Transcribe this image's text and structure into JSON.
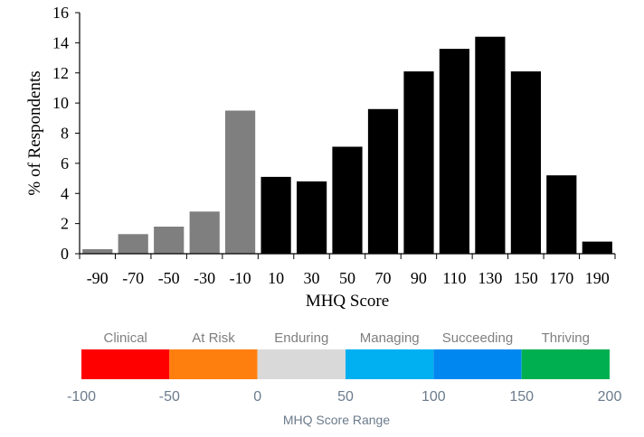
{
  "chart_data": [
    {
      "type": "bar",
      "title": "",
      "xlabel": "MHQ Score",
      "ylabel": "% of Respondents",
      "ylim": [
        0,
        16
      ],
      "yticks": [
        0,
        2,
        4,
        6,
        8,
        10,
        12,
        14,
        16
      ],
      "categories": [
        "-90",
        "-70",
        "-50",
        "-30",
        "-10",
        "10",
        "30",
        "50",
        "70",
        "90",
        "110",
        "130",
        "150",
        "170",
        "190"
      ],
      "values": [
        0.3,
        1.3,
        1.8,
        2.8,
        9.5,
        5.1,
        4.8,
        7.1,
        9.6,
        12.1,
        13.6,
        14.4,
        12.1,
        5.2,
        0.8
      ],
      "colors": [
        "#7f7f7f",
        "#7f7f7f",
        "#7f7f7f",
        "#7f7f7f",
        "#7f7f7f",
        "#000000",
        "#000000",
        "#000000",
        "#000000",
        "#000000",
        "#000000",
        "#000000",
        "#000000",
        "#000000",
        "#000000"
      ],
      "grid": false,
      "legend": "none"
    },
    {
      "type": "bar",
      "title": "MHQ Score Range",
      "xlim": [
        -100,
        200
      ],
      "xticks": [
        "-100",
        "-50",
        "0",
        "50",
        "100",
        "150",
        "200"
      ],
      "segments": [
        {
          "label": "Clinical",
          "from": -100,
          "to": -50,
          "color": "#ff0000"
        },
        {
          "label": "At Risk",
          "from": -50,
          "to": 0,
          "color": "#ff7f0e"
        },
        {
          "label": "Enduring",
          "from": 0,
          "to": 50,
          "color": "#d9d9d9"
        },
        {
          "label": "Managing",
          "from": 50,
          "to": 100,
          "color": "#00b0f0"
        },
        {
          "label": "Succeeding",
          "from": 100,
          "to": 150,
          "color": "#0088f0"
        },
        {
          "label": "Thriving",
          "from": 150,
          "to": 200,
          "color": "#00b050"
        }
      ]
    }
  ]
}
